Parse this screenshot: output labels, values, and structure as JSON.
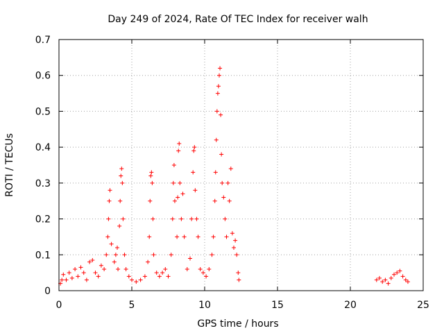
{
  "chart_data": {
    "type": "scatter",
    "title": "Day 249 of 2024, Rate Of TEC Index for receiver walh",
    "xlabel": "GPS time / hours",
    "ylabel": "ROTI / TECUs",
    "xlim": [
      0,
      25
    ],
    "ylim": [
      0,
      0.7
    ],
    "xticks": [
      "0",
      "5",
      "10",
      "15",
      "20",
      "25"
    ],
    "yticks": [
      "0",
      "0.1",
      "0.2",
      "0.3",
      "0.4",
      "0.5",
      "0.6",
      "0.7"
    ],
    "grid": true,
    "marker": "+",
    "color": "#ff0000",
    "series": [
      {
        "points": [
          [
            0.1,
            0.02
          ],
          [
            0.2,
            0.03
          ],
          [
            0.3,
            0.045
          ],
          [
            0.5,
            0.03
          ],
          [
            0.7,
            0.05
          ],
          [
            0.9,
            0.035
          ],
          [
            1.1,
            0.06
          ],
          [
            1.3,
            0.04
          ],
          [
            1.5,
            0.065
          ],
          [
            1.7,
            0.05
          ],
          [
            1.9,
            0.03
          ],
          [
            2.1,
            0.08
          ],
          [
            2.3,
            0.085
          ],
          [
            2.5,
            0.05
          ],
          [
            2.7,
            0.04
          ],
          [
            2.9,
            0.07
          ],
          [
            3.1,
            0.06
          ],
          [
            3.25,
            0.1
          ],
          [
            3.35,
            0.15
          ],
          [
            3.4,
            0.2
          ],
          [
            3.45,
            0.25
          ],
          [
            3.5,
            0.28
          ],
          [
            3.6,
            0.13
          ],
          [
            3.8,
            0.08
          ],
          [
            3.9,
            0.1
          ],
          [
            4.0,
            0.12
          ],
          [
            4.05,
            0.06
          ],
          [
            4.15,
            0.18
          ],
          [
            4.2,
            0.25
          ],
          [
            4.25,
            0.32
          ],
          [
            4.3,
            0.34
          ],
          [
            4.35,
            0.3
          ],
          [
            4.4,
            0.2
          ],
          [
            4.5,
            0.1
          ],
          [
            4.6,
            0.06
          ],
          [
            4.8,
            0.04
          ],
          [
            5.0,
            0.03
          ],
          [
            5.3,
            0.025
          ],
          [
            5.6,
            0.03
          ],
          [
            5.9,
            0.04
          ],
          [
            6.1,
            0.08
          ],
          [
            6.2,
            0.15
          ],
          [
            6.25,
            0.25
          ],
          [
            6.3,
            0.32
          ],
          [
            6.35,
            0.33
          ],
          [
            6.4,
            0.3
          ],
          [
            6.45,
            0.2
          ],
          [
            6.5,
            0.1
          ],
          [
            6.7,
            0.05
          ],
          [
            6.9,
            0.04
          ],
          [
            7.1,
            0.05
          ],
          [
            7.3,
            0.06
          ],
          [
            7.5,
            0.04
          ],
          [
            7.7,
            0.1
          ],
          [
            7.8,
            0.2
          ],
          [
            7.85,
            0.3
          ],
          [
            7.9,
            0.35
          ],
          [
            7.95,
            0.25
          ],
          [
            8.1,
            0.15
          ],
          [
            8.15,
            0.26
          ],
          [
            8.2,
            0.39
          ],
          [
            8.25,
            0.41
          ],
          [
            8.3,
            0.3
          ],
          [
            8.4,
            0.2
          ],
          [
            8.5,
            0.27
          ],
          [
            8.6,
            0.15
          ],
          [
            8.8,
            0.06
          ],
          [
            9.0,
            0.09
          ],
          [
            9.1,
            0.2
          ],
          [
            9.2,
            0.33
          ],
          [
            9.25,
            0.39
          ],
          [
            9.3,
            0.4
          ],
          [
            9.35,
            0.28
          ],
          [
            9.45,
            0.2
          ],
          [
            9.55,
            0.15
          ],
          [
            9.7,
            0.06
          ],
          [
            9.9,
            0.05
          ],
          [
            10.1,
            0.04
          ],
          [
            10.3,
            0.06
          ],
          [
            10.5,
            0.1
          ],
          [
            10.6,
            0.15
          ],
          [
            10.7,
            0.25
          ],
          [
            10.75,
            0.33
          ],
          [
            10.8,
            0.42
          ],
          [
            10.85,
            0.5
          ],
          [
            10.9,
            0.55
          ],
          [
            10.95,
            0.57
          ],
          [
            11.0,
            0.6
          ],
          [
            11.05,
            0.62
          ],
          [
            11.1,
            0.49
          ],
          [
            11.15,
            0.38
          ],
          [
            11.2,
            0.3
          ],
          [
            11.3,
            0.26
          ],
          [
            11.4,
            0.2
          ],
          [
            11.5,
            0.15
          ],
          [
            11.6,
            0.3
          ],
          [
            11.7,
            0.25
          ],
          [
            11.8,
            0.34
          ],
          [
            11.9,
            0.16
          ],
          [
            12.0,
            0.12
          ],
          [
            12.1,
            0.14
          ],
          [
            12.2,
            0.1
          ],
          [
            12.3,
            0.05
          ],
          [
            12.35,
            0.03
          ],
          [
            21.8,
            0.03
          ],
          [
            22.0,
            0.035
          ],
          [
            22.2,
            0.025
          ],
          [
            22.4,
            0.03
          ],
          [
            22.6,
            0.02
          ],
          [
            22.8,
            0.035
          ],
          [
            23.0,
            0.045
          ],
          [
            23.2,
            0.05
          ],
          [
            23.4,
            0.055
          ],
          [
            23.6,
            0.04
          ],
          [
            23.8,
            0.03
          ],
          [
            23.95,
            0.025
          ]
        ]
      }
    ]
  }
}
